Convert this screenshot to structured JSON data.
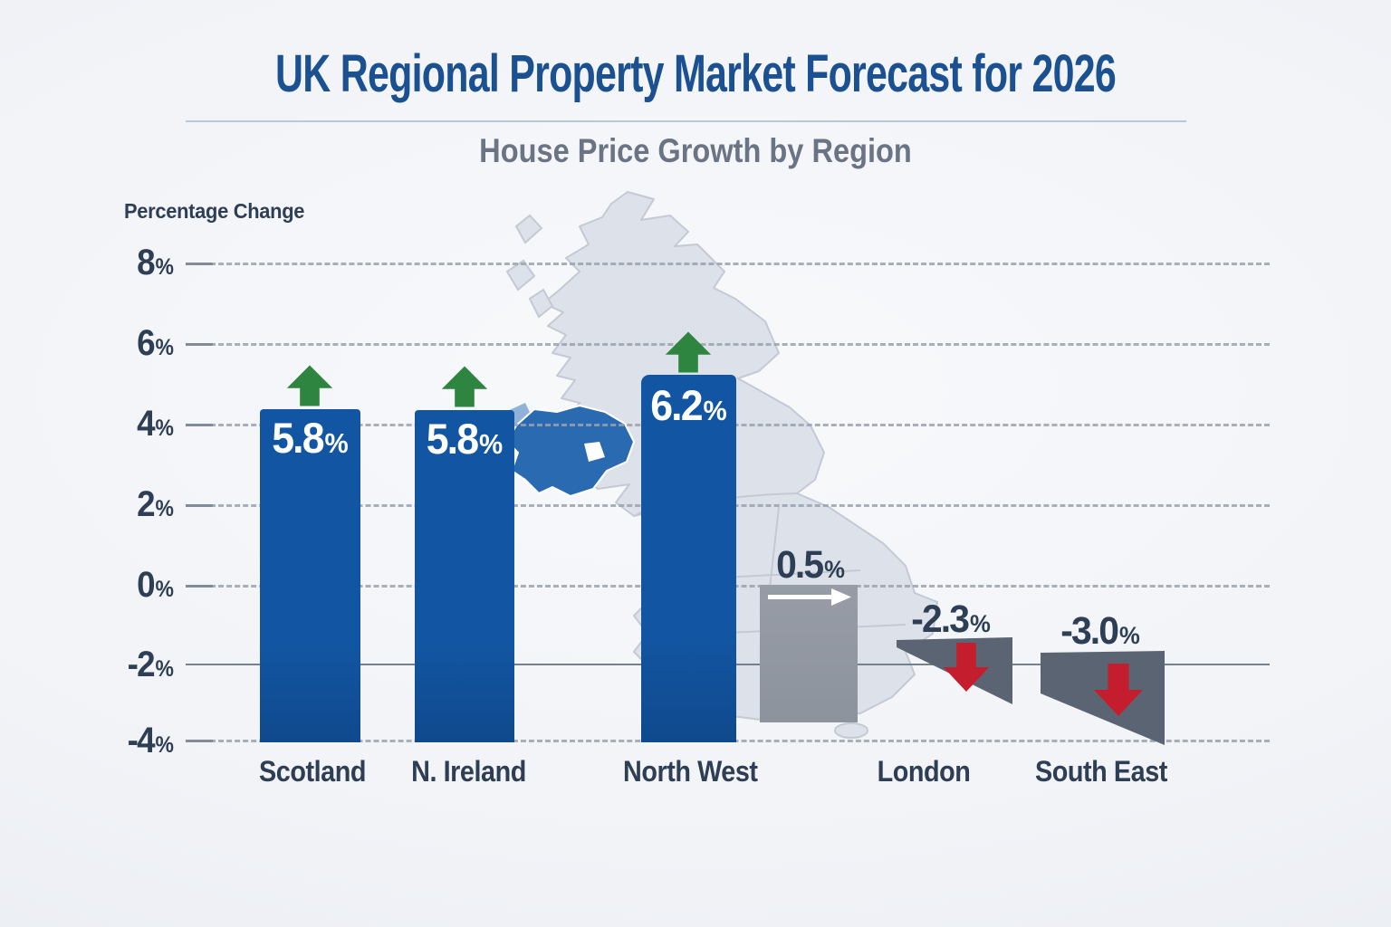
{
  "header": {
    "title": "UK Regional Property Market Forecast for 2026"
  },
  "chart_data": {
    "type": "bar",
    "title": "House Price Growth by Region",
    "ylabel": "Percentage Change",
    "xlabel": "",
    "ylim": [
      -4,
      8
    ],
    "y_ticks": [
      "8%",
      "6%",
      "4%",
      "2%",
      "0%",
      "-2%",
      "-4%"
    ],
    "gridlines": "dashed horizontal, solid emphasis line at -2%",
    "legend": "none",
    "categories": [
      "Scotland",
      "N. Ireland",
      "North West",
      "",
      "London",
      "South East"
    ],
    "values": [
      5.8,
      5.8,
      6.2,
      0.5,
      -2.3,
      -3.0
    ],
    "value_labels": [
      "5.8%",
      "5.8%",
      "6.2%",
      "0.5%",
      "-2.3%",
      "-3.0%"
    ],
    "trends": [
      "up",
      "up",
      "up",
      "flat",
      "down",
      "down"
    ]
  },
  "map": {
    "name": "United Kingdom silhouette",
    "highlighted_region": "Northern Ireland"
  },
  "colors": {
    "title_blue": "#1b5191",
    "subtitle_gray": "#6a7484",
    "text_dark": "#2e3e54",
    "bar_blue": "#1256a3",
    "bar_gray": "#8d939d",
    "wedge_slate": "#5b6472",
    "arrow_green": "#2e8540",
    "arrow_red": "#c41e2e",
    "arrow_white": "#ffffff",
    "map_land": "#dde2ea",
    "map_border": "#c3cad5",
    "map_highlight": "#2a6ab1",
    "map_highlight_light": "#8fb2d9",
    "grid_dash": "#9aa3af",
    "grid_solid": "#6f7a88",
    "divider": "#b9c7da"
  }
}
